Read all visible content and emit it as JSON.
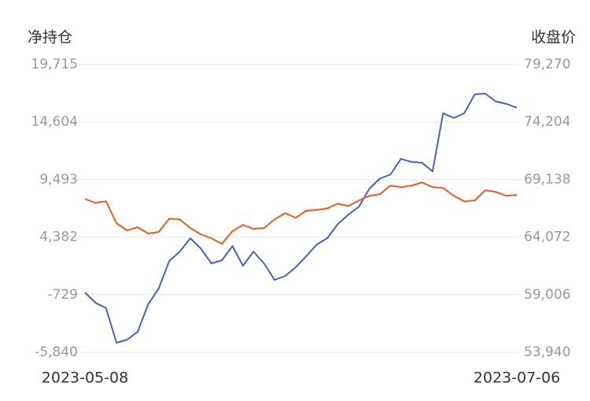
{
  "chart_data": {
    "type": "line",
    "y_label": "净持仓",
    "y2_label": "收盘价",
    "x": [
      "2023-05-08",
      null,
      null,
      null,
      null,
      null,
      null,
      null,
      null,
      null,
      null,
      null,
      null,
      null,
      null,
      null,
      null,
      null,
      null,
      null,
      null,
      null,
      null,
      null,
      null,
      null,
      null,
      null,
      null,
      null,
      null,
      null,
      null,
      null,
      null,
      null,
      null,
      null,
      null,
      null,
      null,
      "2023-07-06"
    ],
    "series": [
      {
        "color": "#4a5fc1",
        "values": [
          -533,
          -1440,
          -1929,
          -5001,
          -4722,
          -4024,
          -1580,
          -184,
          2260,
          3098,
          4285,
          3377,
          2051,
          2330,
          3587,
          1841,
          3098,
          2051,
          584,
          933,
          1701,
          2679,
          3726,
          4285,
          5542,
          6379,
          7078,
          8683,
          9591,
          9940,
          11337,
          11057,
          10987,
          10219,
          15386,
          14967,
          15386,
          17062,
          17132,
          16433,
          16224,
          15875
        ]
      },
      {
        "color": "#f05a1a",
        "axis": "y2",
        "values": [
          67435,
          67089,
          67227,
          65290,
          64667,
          64944,
          64390,
          64528,
          65705,
          65636,
          64874,
          64321,
          63975,
          63490,
          64597,
          65151,
          64805,
          64874,
          65636,
          66189,
          65774,
          66397,
          66466,
          66605,
          67020,
          66812,
          67297,
          67712,
          67850,
          68612,
          68473,
          68612,
          68888,
          68473,
          68404,
          67712,
          67227,
          67297,
          68196,
          68058,
          67712,
          67781
        ]
      }
    ],
    "ylim": [
      -5840,
      19715
    ],
    "yticks": [
      {
        "value": -5840,
        "label": "-5,840"
      },
      {
        "value": -729,
        "label": "-729"
      },
      {
        "value": 4382,
        "label": "4,382"
      },
      {
        "value": 9493,
        "label": "9,493"
      },
      {
        "value": 14604,
        "label": "14,604"
      },
      {
        "value": 19715,
        "label": "19,715"
      }
    ],
    "y2lim": [
      53940,
      79270
    ],
    "y2ticks": [
      {
        "value": 53940,
        "label": "53,940"
      },
      {
        "value": 59006,
        "label": "59,006"
      },
      {
        "value": 64072,
        "label": "64,072"
      },
      {
        "value": 69138,
        "label": "69,138"
      },
      {
        "value": 74204,
        "label": "74,204"
      },
      {
        "value": 79270,
        "label": "79,270"
      }
    ],
    "grid": true
  }
}
